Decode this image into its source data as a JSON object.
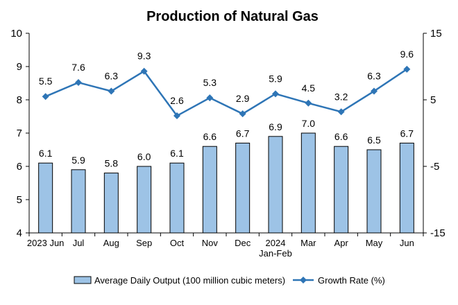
{
  "chart_data": {
    "type": "bar",
    "title": "Production of Natural Gas",
    "categories": [
      [
        "2023 Jun"
      ],
      [
        "Jul"
      ],
      [
        "Aug"
      ],
      [
        "Sep"
      ],
      [
        "Oct"
      ],
      [
        "Nov"
      ],
      [
        "Dec"
      ],
      [
        "2024",
        "Jan-Feb"
      ],
      [
        "Mar"
      ],
      [
        "Apr"
      ],
      [
        "May"
      ],
      [
        "Jun"
      ]
    ],
    "series": [
      {
        "name": "Average Daily Output (100 million cubic meters)",
        "type": "bar",
        "axis": "left",
        "values": [
          6.1,
          5.9,
          5.8,
          6.0,
          6.1,
          6.6,
          6.7,
          6.9,
          7.0,
          6.6,
          6.5,
          6.7
        ],
        "labels": [
          "6.1",
          "5.9",
          "5.8",
          "6.0",
          "6.1",
          "6.6",
          "6.7",
          "6.9",
          "7.0",
          "6.6",
          "6.5",
          "6.7"
        ],
        "color": "#9DC3E6",
        "stroke": "#000000"
      },
      {
        "name": "Growth Rate (%)",
        "type": "line",
        "axis": "right",
        "values": [
          5.5,
          7.6,
          6.3,
          9.3,
          2.6,
          5.3,
          2.9,
          5.9,
          4.5,
          3.2,
          6.3,
          9.6
        ],
        "labels": [
          "5.5",
          "7.6",
          "6.3",
          "9.3",
          "2.6",
          "5.3",
          "2.9",
          "5.9",
          "4.5",
          "3.2",
          "6.3",
          "9.6"
        ],
        "color": "#2E75B6",
        "marker": "diamond"
      }
    ],
    "left_axis": {
      "min": 4,
      "max": 10,
      "ticks": [
        4,
        5,
        6,
        7,
        8,
        9,
        10
      ],
      "tick_labels": [
        "4",
        "5",
        "6",
        "7",
        "8",
        "9",
        "10"
      ]
    },
    "right_axis": {
      "min": -15,
      "max": 15,
      "ticks": [
        -15,
        -5,
        5,
        15
      ],
      "tick_labels": [
        "-15",
        "-5",
        "5",
        "15"
      ]
    },
    "grid": false,
    "legend_position": "bottom"
  }
}
